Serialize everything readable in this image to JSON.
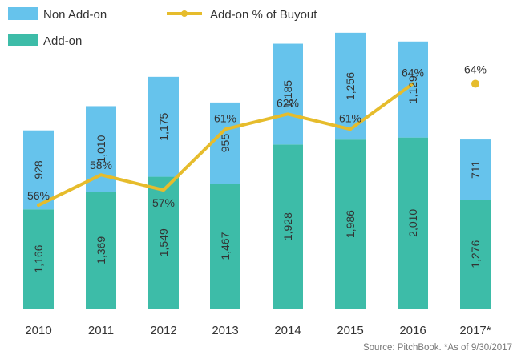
{
  "chart_data": {
    "type": "bar",
    "stacked": true,
    "categories": [
      "2010",
      "2011",
      "2012",
      "2013",
      "2014",
      "2015",
      "2016",
      "2017*"
    ],
    "series": [
      {
        "name": "Add-on",
        "color": "#3DBCA8",
        "values": [
          1166,
          1369,
          1549,
          1467,
          1928,
          1986,
          2010,
          1276
        ],
        "labels": [
          "1,166",
          "1,369",
          "1,549",
          "1,467",
          "1,928",
          "1,986",
          "2,010",
          "1,276"
        ]
      },
      {
        "name": "Non Add-on",
        "color": "#66C3EC",
        "values": [
          928,
          1010,
          1175,
          955,
          1185,
          1256,
          1129,
          711
        ],
        "labels": [
          "928",
          "1,010",
          "1,175",
          "955",
          "1,185",
          "1,256",
          "1,129",
          "711"
        ]
      }
    ],
    "line_series": {
      "name": "Add-on % of Buyout",
      "color": "#E6BC2C",
      "values": [
        56,
        58,
        57,
        61,
        62,
        61,
        64,
        64
      ],
      "labels": [
        "56%",
        "58%",
        "57%",
        "61%",
        "62%",
        "61%",
        "64%",
        "64%"
      ],
      "last_point_marker_only": true
    },
    "ylim": [
      0,
      3250
    ],
    "pct_ylim": [
      49.2,
      67.4
    ],
    "grid": false,
    "legend_position": "top-left"
  },
  "source_note": "Source: PitchBook. *As of 9/30/2017"
}
